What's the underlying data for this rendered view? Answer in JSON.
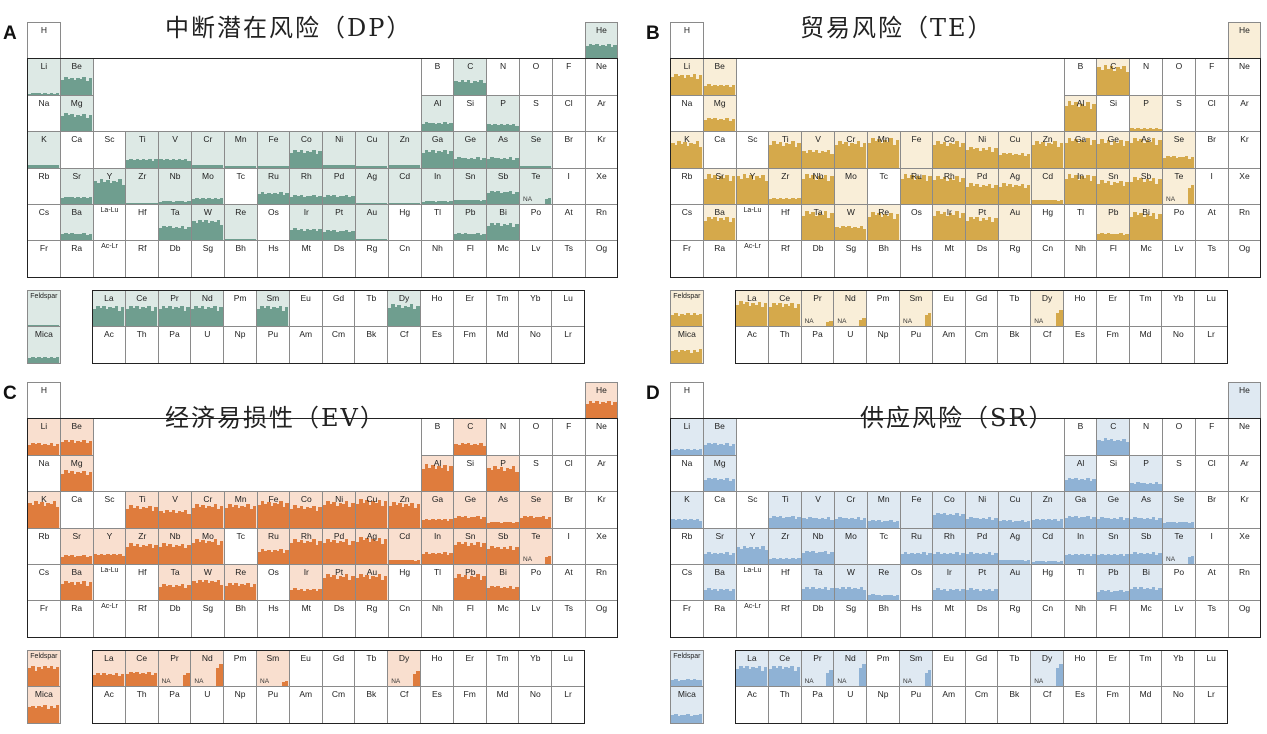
{
  "table": {
    "rows": [
      [
        "H",
        "",
        "",
        "",
        "",
        "",
        "",
        "",
        "",
        "",
        "",
        "",
        "",
        "",
        "",
        "",
        "",
        "He"
      ],
      [
        "Li",
        "Be",
        "",
        "",
        "",
        "",
        "",
        "",
        "",
        "",
        "",
        "",
        "B",
        "C",
        "N",
        "O",
        "F",
        "Ne"
      ],
      [
        "Na",
        "Mg",
        "",
        "",
        "",
        "",
        "",
        "",
        "",
        "",
        "",
        "",
        "Al",
        "Si",
        "P",
        "S",
        "Cl",
        "Ar"
      ],
      [
        "K",
        "Ca",
        "Sc",
        "Ti",
        "V",
        "Cr",
        "Mn",
        "Fe",
        "Co",
        "Ni",
        "Cu",
        "Zn",
        "Ga",
        "Ge",
        "As",
        "Se",
        "Br",
        "Kr"
      ],
      [
        "Rb",
        "Sr",
        "Y",
        "Zr",
        "Nb",
        "Mo",
        "Tc",
        "Ru",
        "Rh",
        "Pd",
        "Ag",
        "Cd",
        "In",
        "Sn",
        "Sb",
        "Te",
        "I",
        "Xe"
      ],
      [
        "Cs",
        "Ba",
        "La-Lu",
        "Hf",
        "Ta",
        "W",
        "Re",
        "Os",
        "Ir",
        "Pt",
        "Au",
        "Hg",
        "Tl",
        "Pb",
        "Bi",
        "Po",
        "At",
        "Rn"
      ],
      [
        "Fr",
        "Ra",
        "Ac-Lr",
        "Rf",
        "Db",
        "Sg",
        "Bh",
        "Hs",
        "Mt",
        "Ds",
        "Rg",
        "Cn",
        "Nh",
        "Fl",
        "Mc",
        "Lv",
        "Ts",
        "Og"
      ]
    ],
    "f_rows": [
      [
        "La",
        "Ce",
        "Pr",
        "Nd",
        "Pm",
        "Sm",
        "Eu",
        "Gd",
        "Tb",
        "Dy",
        "Ho",
        "Er",
        "Tm",
        "Yb",
        "Lu"
      ],
      [
        "Ac",
        "Th",
        "Pa",
        "U",
        "Np",
        "Pu",
        "Am",
        "Cm",
        "Bk",
        "Cf",
        "Es",
        "Fm",
        "Md",
        "No",
        "Lr"
      ]
    ],
    "minerals": [
      "Feldspar",
      "Mica"
    ],
    "na_label": "NA"
  },
  "chart_data": [
    {
      "type": "heatmap",
      "letter": "A",
      "title": "中断潜在风险（DP）",
      "bar_color": "#6f9e8f",
      "bg_color": "#dde9e5",
      "na": [
        "Te"
      ],
      "levels": {
        "He": 0.5,
        "Li": 0.05,
        "Be": 0.6,
        "Mg": 0.6,
        "C": 0.5,
        "Al": 0.3,
        "P": 0.25,
        "K": 0.1,
        "Ti": 0.3,
        "V": 0.3,
        "Cr": 0.1,
        "Mn": 0.05,
        "Fe": 0.05,
        "Co": 0.6,
        "Ni": 0.1,
        "Cu": 0.05,
        "Zn": 0.1,
        "Ga": 0.6,
        "Ge": 0.35,
        "As": 0.35,
        "Se": 0.05,
        "Sr": 0.25,
        "Y": 0.85,
        "Zr": 0.03,
        "Nb": 0.1,
        "Mo": 0.2,
        "Ru": 0.4,
        "Rh": 0.3,
        "Pd": 0.3,
        "Ag": 0.02,
        "Cd": 0.05,
        "In": 0.1,
        "Sn": 0.15,
        "Sb": 0.45,
        "Te": 0.2,
        "Ba": 0.25,
        "Ta": 0.5,
        "W": 0.7,
        "Re": 0.03,
        "Ir": 0.4,
        "Pt": 0.35,
        "Au": 0.03,
        "Pb": 0.25,
        "Bi": 0.6,
        "La": 0.7,
        "Ce": 0.7,
        "Pr": 0.7,
        "Nd": 0.7,
        "Sm": 0.7,
        "Dy": 0.75,
        "Feldspar": 0.03,
        "Mica": 0.2
      }
    },
    {
      "type": "heatmap",
      "letter": "B",
      "title": "贸易风险（TE）",
      "bar_color": "#d5a94b",
      "bg_color": "#f9eed8",
      "na": [
        "Te",
        "Pr",
        "Nd",
        "Sm",
        "Dy"
      ],
      "levels": {
        "He": 0,
        "Li": 0.7,
        "Be": 0.35,
        "Mg": 0.45,
        "C": 1.0,
        "Al": 1.0,
        "P": 0.1,
        "K": 0.9,
        "Ti": 0.9,
        "V": 0.6,
        "Cr": 0.9,
        "Mn": 1.0,
        "Fe": 0,
        "Co": 0.9,
        "Ni": 0.7,
        "Cu": 0.5,
        "Zn": 0.9,
        "Ga": 1.0,
        "Ge": 0.95,
        "As": 1.0,
        "Se": 0.4,
        "Sr": 1.0,
        "Y": 1.0,
        "Zr": 0.2,
        "Nb": 1.0,
        "Mo": 0,
        "Ru": 1.0,
        "Rh": 0.95,
        "Pd": 0.7,
        "Ag": 0.7,
        "Cd": 0.15,
        "In": 1.0,
        "Sn": 0.8,
        "Sb": 0.9,
        "Te": 0.7,
        "Ba": 0.8,
        "Ta": 1.0,
        "W": 0.5,
        "Re": 0.95,
        "Ir": 1.0,
        "Pt": 0.8,
        "Au": 0,
        "Pb": 0.25,
        "Bi": 0.95,
        "La": 0.85,
        "Ce": 0.8,
        "Pr": 0.2,
        "Nd": 0.3,
        "Sm": 0.5,
        "Dy": 0.6,
        "Feldspar": 0.45,
        "Mica": 0.45
      }
    },
    {
      "type": "heatmap",
      "letter": "C",
      "title": "经济易损性（EV）",
      "bar_color": "#df7c3d",
      "bg_color": "#f9dfcf",
      "na": [
        "Te",
        "Pr",
        "Nd",
        "Sm",
        "Dy"
      ],
      "levels": {
        "He": 0.6,
        "Li": 0.4,
        "Be": 0.5,
        "Mg": 0.7,
        "C": 0.4,
        "Al": 0.9,
        "P": 0.85,
        "K": 0.9,
        "Ti": 0.75,
        "V": 0.6,
        "Cr": 0.8,
        "Mn": 0.8,
        "Fe": 0.9,
        "Co": 0.75,
        "Ni": 0.9,
        "Cu": 0.95,
        "Zn": 0.85,
        "Ga": 0.3,
        "Ge": 0.4,
        "As": 0.2,
        "Se": 0.4,
        "Sr": 0.3,
        "Y": 0.35,
        "Zr": 0.7,
        "Nb": 0.7,
        "Mo": 0.85,
        "Ru": 0.5,
        "Rh": 0.85,
        "Pd": 0.85,
        "Ag": 0.9,
        "Cd": 0.15,
        "In": 0.4,
        "Sn": 0.75,
        "Sb": 0.6,
        "Te": 0.3,
        "Ba": 0.65,
        "Ta": 0.55,
        "W": 0.7,
        "Re": 0.6,
        "Ir": 0.4,
        "Pt": 0.9,
        "Au": 0.9,
        "Pb": 0.9,
        "Bi": 0.5,
        "La": 0.45,
        "Ce": 0.5,
        "Pr": 0.5,
        "Nd": 0.8,
        "Sm": 0.2,
        "Dy": 0.55,
        "Feldspar": 0.7,
        "Mica": 0.6
      }
    },
    {
      "type": "heatmap",
      "letter": "D",
      "title": "供应风险（SR）",
      "bar_color": "#8fb2d5",
      "bg_color": "#dfe9f2",
      "na": [
        "Te",
        "Pr",
        "Nd",
        "Sm",
        "Dy"
      ],
      "levels": {
        "He": 0,
        "Li": 0.2,
        "Be": 0.4,
        "Mg": 0.45,
        "C": 0.55,
        "Al": 0.45,
        "P": 0.3,
        "K": 0.3,
        "Ti": 0.4,
        "V": 0.35,
        "Cr": 0.35,
        "Mn": 0.25,
        "Fe": 0,
        "Co": 0.5,
        "Ni": 0.35,
        "Cu": 0.25,
        "Zn": 0.3,
        "Ga": 0.4,
        "Ge": 0.35,
        "As": 0.35,
        "Se": 0.2,
        "Sr": 0.4,
        "Y": 0.6,
        "Zr": 0.2,
        "Nb": 0.45,
        "Mo": 0,
        "Ru": 0.4,
        "Rh": 0.4,
        "Pd": 0.4,
        "Ag": 0.15,
        "Cd": 0.1,
        "In": 0.35,
        "Sn": 0.35,
        "Sb": 0.4,
        "Te": 0.3,
        "Ba": 0.4,
        "Ta": 0.45,
        "W": 0.45,
        "Re": 0.2,
        "Ir": 0.4,
        "Pt": 0.4,
        "Au": 0,
        "Pb": 0.35,
        "Bi": 0.45,
        "La": 0.7,
        "Ce": 0.7,
        "Pr": 0.6,
        "Nd": 0.8,
        "Sm": 0.6,
        "Dy": 0.8,
        "Feldspar": 0.25,
        "Mica": 0.3
      }
    }
  ]
}
